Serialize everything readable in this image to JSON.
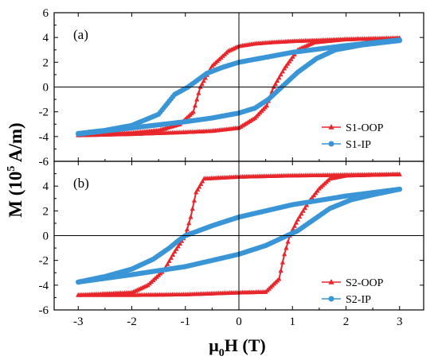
{
  "colors": {
    "oop": "#e8262b",
    "ip": "#3a95d6",
    "axis": "#000000"
  },
  "axis_titles": {
    "y": {
      "main": "M (10",
      "sup": "5",
      "rest": " A/m)"
    },
    "x": {
      "mu": "μ",
      "sub": "0",
      "rest": "H (T)"
    }
  },
  "chart_data": [
    {
      "type": "line",
      "panel_label": "(a)",
      "xlim": [
        -3.45,
        3.45
      ],
      "ylim": [
        -6,
        6
      ],
      "ytick_labels": [
        "-6",
        "-4",
        "-2",
        "0",
        "2",
        "4",
        "6"
      ],
      "legend_position": "bottom-right",
      "series": [
        {
          "name": "S1-OOP",
          "marker": "triangle",
          "color": "#e8262b",
          "upper_branch": [
            [
              -3,
              -3.85
            ],
            [
              -2,
              -3.7
            ],
            [
              -1.5,
              -3.5
            ],
            [
              -1.1,
              -3.0
            ],
            [
              -0.85,
              -2.0
            ],
            [
              -0.72,
              0.0
            ],
            [
              -0.5,
              1.7
            ],
            [
              -0.2,
              2.9
            ],
            [
              0.0,
              3.3
            ],
            [
              0.3,
              3.5
            ],
            [
              0.6,
              3.6
            ],
            [
              1.0,
              3.7
            ],
            [
              2.0,
              3.85
            ],
            [
              3.0,
              3.95
            ]
          ],
          "lower_branch": [
            [
              -3,
              -3.9
            ],
            [
              -2,
              -3.8
            ],
            [
              -1,
              -3.65
            ],
            [
              -0.5,
              -3.55
            ],
            [
              0.0,
              -3.3
            ],
            [
              0.3,
              -2.5
            ],
            [
              0.52,
              -1.5
            ],
            [
              0.65,
              0.0
            ],
            [
              0.85,
              1.5
            ],
            [
              1.1,
              3.0
            ],
            [
              1.4,
              3.6
            ],
            [
              2.0,
              3.85
            ],
            [
              3.0,
              3.95
            ]
          ]
        },
        {
          "name": "S1-IP",
          "marker": "circle",
          "color": "#3a95d6",
          "upper_branch": [
            [
              -3,
              -3.75
            ],
            [
              -2.5,
              -3.5
            ],
            [
              -2.0,
              -3.1
            ],
            [
              -1.5,
              -2.2
            ],
            [
              -1.2,
              -0.6
            ],
            [
              -0.95,
              0.0
            ],
            [
              -0.6,
              1.1
            ],
            [
              -0.3,
              1.6
            ],
            [
              0.0,
              2.0
            ],
            [
              0.5,
              2.4
            ],
            [
              1.0,
              2.8
            ],
            [
              2.0,
              3.35
            ],
            [
              3.0,
              3.8
            ]
          ],
          "lower_branch": [
            [
              -3,
              -3.8
            ],
            [
              -2.0,
              -3.3
            ],
            [
              -1.0,
              -2.8
            ],
            [
              -0.5,
              -2.5
            ],
            [
              0.0,
              -2.1
            ],
            [
              0.3,
              -1.7
            ],
            [
              0.55,
              -1.0
            ],
            [
              0.8,
              0.0
            ],
            [
              1.1,
              1.2
            ],
            [
              1.45,
              2.3
            ],
            [
              1.8,
              3.0
            ],
            [
              2.3,
              3.4
            ],
            [
              3.0,
              3.75
            ]
          ]
        }
      ]
    },
    {
      "type": "line",
      "panel_label": "(b)",
      "xlim": [
        -3.45,
        3.45
      ],
      "ylim": [
        -6,
        6
      ],
      "ytick_labels": [
        "-6",
        "-4",
        "-2",
        "0",
        "2",
        "4",
        "6"
      ],
      "xtick_labels": [
        "-3",
        "-2",
        "-1",
        "0",
        "1",
        "2",
        "3"
      ],
      "xticks": [
        -3,
        -2,
        -1,
        0,
        1,
        2,
        3
      ],
      "legend_position": "bottom-right",
      "series": [
        {
          "name": "S2-OOP",
          "marker": "triangle",
          "color": "#e8262b",
          "upper_branch": [
            [
              -3,
              -4.8
            ],
            [
              -2.0,
              -4.6
            ],
            [
              -1.7,
              -4.0
            ],
            [
              -1.4,
              -2.8
            ],
            [
              -1.2,
              -1.3
            ],
            [
              -1.0,
              0.0
            ],
            [
              -0.9,
              1.5
            ],
            [
              -0.8,
              3.5
            ],
            [
              -0.65,
              4.6
            ],
            [
              0.0,
              4.75
            ],
            [
              1.0,
              4.85
            ],
            [
              2.0,
              4.9
            ],
            [
              3.0,
              4.95
            ]
          ],
          "lower_branch": [
            [
              -3,
              -4.8
            ],
            [
              -2.0,
              -4.8
            ],
            [
              -1.0,
              -4.75
            ],
            [
              0.0,
              -4.6
            ],
            [
              0.5,
              -4.55
            ],
            [
              0.75,
              -3.5
            ],
            [
              0.85,
              -1.5
            ],
            [
              0.95,
              0.0
            ],
            [
              1.1,
              1.3
            ],
            [
              1.3,
              2.7
            ],
            [
              1.5,
              3.8
            ],
            [
              1.7,
              4.6
            ],
            [
              2.0,
              4.85
            ],
            [
              3.0,
              4.95
            ]
          ]
        },
        {
          "name": "S2-IP",
          "marker": "circle",
          "color": "#3a95d6",
          "upper_branch": [
            [
              -3,
              -3.75
            ],
            [
              -2.5,
              -3.3
            ],
            [
              -2.0,
              -2.7
            ],
            [
              -1.6,
              -1.9
            ],
            [
              -1.3,
              -1.0
            ],
            [
              -1.1,
              -0.3
            ],
            [
              -1.0,
              0.0
            ],
            [
              -0.5,
              0.8
            ],
            [
              0.0,
              1.5
            ],
            [
              1.0,
              2.5
            ],
            [
              2.0,
              3.2
            ],
            [
              3.0,
              3.75
            ]
          ],
          "lower_branch": [
            [
              -3,
              -3.75
            ],
            [
              -2.0,
              -3.15
            ],
            [
              -1.0,
              -2.5
            ],
            [
              0.0,
              -1.5
            ],
            [
              0.5,
              -0.8
            ],
            [
              0.9,
              0.0
            ],
            [
              1.1,
              0.4
            ],
            [
              1.4,
              1.3
            ],
            [
              1.7,
              2.2
            ],
            [
              2.1,
              2.9
            ],
            [
              2.5,
              3.3
            ],
            [
              3.0,
              3.75
            ]
          ]
        }
      ]
    }
  ]
}
